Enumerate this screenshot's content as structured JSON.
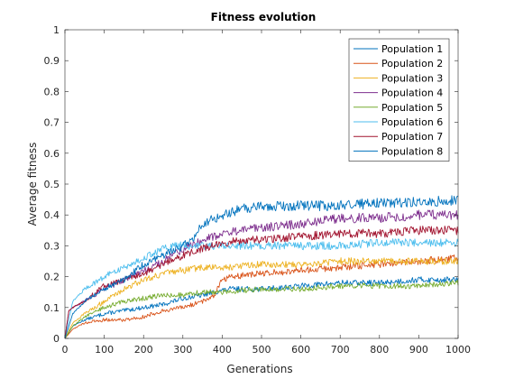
{
  "chart_data": {
    "type": "line",
    "title": "Fitness evolution",
    "xlabel": "Generations",
    "ylabel": "Average fitness",
    "xlim": [
      0,
      1000
    ],
    "ylim": [
      0,
      1
    ],
    "xticks": [
      0,
      100,
      200,
      300,
      400,
      500,
      600,
      700,
      800,
      900,
      1000
    ],
    "yticks": [
      0,
      0.1,
      0.2,
      0.3,
      0.4,
      0.5,
      0.6,
      0.7,
      0.8,
      0.9,
      1
    ],
    "xtick_labels": [
      "0",
      "100",
      "200",
      "300",
      "400",
      "500",
      "600",
      "700",
      "800",
      "900",
      "1000"
    ],
    "ytick_labels": [
      "0",
      "0.1",
      "0.2",
      "0.3",
      "0.4",
      "0.5",
      "0.6",
      "0.7",
      "0.8",
      "0.9",
      "1"
    ],
    "grid": false,
    "legend_position": "top-right",
    "series": [
      {
        "name": "Population 1",
        "color": "#0072BD",
        "x": [
          0,
          20,
          50,
          100,
          150,
          200,
          250,
          300,
          350,
          380,
          420,
          450,
          500,
          600,
          700,
          800,
          900,
          1000
        ],
        "y": [
          0,
          0.04,
          0.06,
          0.08,
          0.09,
          0.1,
          0.11,
          0.13,
          0.14,
          0.15,
          0.16,
          0.16,
          0.16,
          0.17,
          0.18,
          0.18,
          0.19,
          0.19
        ]
      },
      {
        "name": "Population 2",
        "color": "#D95319",
        "x": [
          0,
          20,
          50,
          100,
          150,
          200,
          250,
          300,
          350,
          380,
          390,
          400,
          420,
          500,
          600,
          700,
          800,
          900,
          1000
        ],
        "y": [
          0,
          0.03,
          0.05,
          0.06,
          0.06,
          0.07,
          0.09,
          0.1,
          0.12,
          0.14,
          0.17,
          0.19,
          0.2,
          0.21,
          0.22,
          0.23,
          0.24,
          0.25,
          0.26
        ]
      },
      {
        "name": "Population 3",
        "color": "#EDB120",
        "x": [
          0,
          20,
          50,
          100,
          150,
          200,
          250,
          300,
          350,
          400,
          500,
          600,
          700,
          800,
          900,
          1000
        ],
        "y": [
          0,
          0.05,
          0.08,
          0.12,
          0.16,
          0.19,
          0.21,
          0.22,
          0.23,
          0.23,
          0.24,
          0.24,
          0.25,
          0.25,
          0.25,
          0.25
        ]
      },
      {
        "name": "Population 4",
        "color": "#7E2F8E",
        "x": [
          0,
          10,
          20,
          50,
          100,
          150,
          200,
          250,
          300,
          350,
          400,
          450,
          500,
          600,
          650,
          700,
          800,
          900,
          1000
        ],
        "y": [
          0,
          0.09,
          0.1,
          0.12,
          0.16,
          0.19,
          0.22,
          0.25,
          0.29,
          0.32,
          0.34,
          0.35,
          0.36,
          0.37,
          0.38,
          0.39,
          0.39,
          0.4,
          0.4
        ]
      },
      {
        "name": "Population 5",
        "color": "#77AC30",
        "x": [
          0,
          20,
          50,
          100,
          150,
          200,
          250,
          300,
          350,
          400,
          500,
          600,
          700,
          800,
          900,
          1000
        ],
        "y": [
          0,
          0.04,
          0.07,
          0.1,
          0.12,
          0.13,
          0.14,
          0.14,
          0.15,
          0.15,
          0.16,
          0.16,
          0.17,
          0.17,
          0.17,
          0.18
        ]
      },
      {
        "name": "Population 6",
        "color": "#4DBEEE",
        "x": [
          0,
          20,
          50,
          100,
          150,
          200,
          250,
          280,
          320,
          400,
          500,
          600,
          700,
          800,
          900,
          1000
        ],
        "y": [
          0,
          0.12,
          0.16,
          0.2,
          0.23,
          0.26,
          0.29,
          0.3,
          0.3,
          0.3,
          0.3,
          0.3,
          0.3,
          0.31,
          0.31,
          0.31
        ]
      },
      {
        "name": "Population 7",
        "color": "#A2142F",
        "x": [
          0,
          10,
          20,
          50,
          100,
          150,
          200,
          250,
          300,
          350,
          400,
          500,
          600,
          700,
          800,
          900,
          1000
        ],
        "y": [
          0,
          0.09,
          0.1,
          0.12,
          0.17,
          0.19,
          0.21,
          0.24,
          0.27,
          0.29,
          0.31,
          0.32,
          0.33,
          0.34,
          0.34,
          0.35,
          0.35
        ]
      },
      {
        "name": "Population 8",
        "color": "#0072BD",
        "x": [
          0,
          20,
          50,
          100,
          150,
          200,
          250,
          300,
          330,
          350,
          400,
          450,
          500,
          600,
          700,
          800,
          900,
          1000
        ],
        "y": [
          0,
          0.08,
          0.12,
          0.16,
          0.19,
          0.24,
          0.27,
          0.3,
          0.33,
          0.37,
          0.4,
          0.42,
          0.43,
          0.43,
          0.43,
          0.44,
          0.44,
          0.45
        ]
      }
    ]
  }
}
